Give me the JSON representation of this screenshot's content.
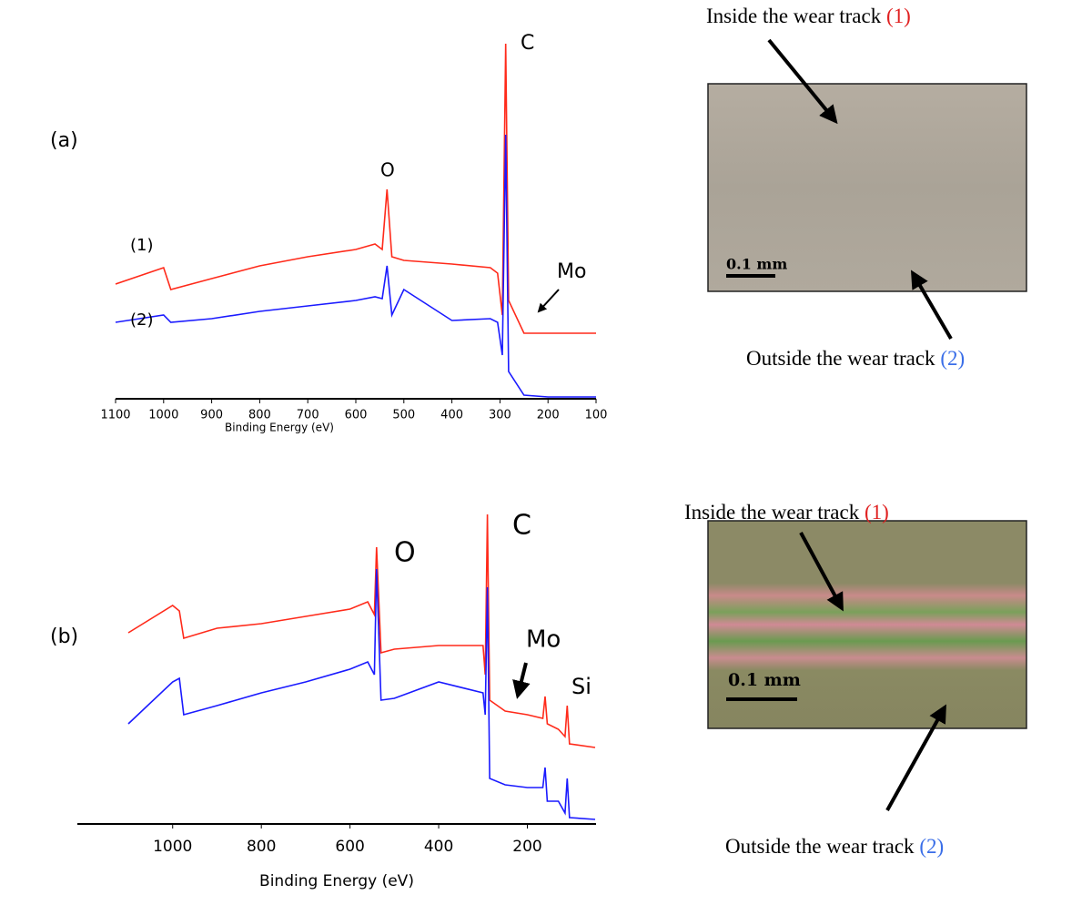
{
  "chart_data": [
    {
      "type": "line",
      "panel_label": "(a)",
      "xlabel": "Binding Energy (eV)",
      "x": [
        1100,
        1000,
        985,
        900,
        800,
        700,
        600,
        560,
        545,
        535,
        525,
        500,
        400,
        320,
        305,
        295,
        288,
        282,
        250,
        200,
        100
      ],
      "xlim": [
        1100,
        100
      ],
      "xticks": [
        1100,
        1000,
        900,
        800,
        700,
        600,
        500,
        400,
        300,
        200,
        100
      ],
      "ylim": [
        0,
        100
      ],
      "series": [
        {
          "name": "(1)",
          "color": "#ff2a1a",
          "values": [
            31.5,
            36,
            30,
            33,
            36.5,
            39,
            41,
            42.5,
            41,
            57.5,
            39,
            38,
            37,
            36,
            34.5,
            23,
            97.5,
            27,
            18,
            18,
            18
          ]
        },
        {
          "name": "(2)",
          "color": "#1a1aff",
          "values": [
            21,
            23,
            21,
            22,
            24,
            25.5,
            27,
            28,
            27.5,
            36.5,
            23,
            30,
            21.5,
            22,
            21,
            12,
            72.5,
            7.5,
            1,
            0.5,
            0.5
          ]
        }
      ],
      "peak_labels": [
        "C",
        "O",
        "Mo"
      ]
    },
    {
      "type": "line",
      "panel_label": "(b)",
      "xlabel": "Binding Energy (eV)",
      "x": [
        1100,
        1000,
        985,
        975,
        900,
        800,
        700,
        600,
        560,
        545,
        540,
        530,
        500,
        400,
        300,
        295,
        290,
        285,
        250,
        200,
        165,
        160,
        155,
        130,
        115,
        110,
        105,
        47
      ],
      "xlim": [
        1215,
        45
      ],
      "xticks": [
        1000,
        800,
        600,
        400,
        200
      ],
      "ylim": [
        0,
        100
      ],
      "series": [
        {
          "color": "#ff2a1a",
          "values": [
            52.5,
            60,
            58.5,
            51,
            53.75,
            55,
            57,
            59,
            61,
            57.5,
            76,
            47,
            48,
            49,
            49,
            41,
            85,
            34,
            31,
            30,
            29,
            35,
            27.5,
            26,
            24,
            32.5,
            22,
            21
          ]
        },
        {
          "color": "#1a1aff",
          "values": [
            27.5,
            39,
            40,
            30,
            32.5,
            36,
            39,
            42.5,
            44.5,
            41,
            70,
            34,
            34.5,
            39,
            36,
            30,
            65,
            12.5,
            10.75,
            10,
            10,
            15.5,
            6.25,
            6.25,
            3,
            12.5,
            1.75,
            1.25
          ]
        }
      ],
      "peak_labels": [
        "C",
        "O",
        "Mo",
        "Si"
      ]
    }
  ],
  "micrographs": [
    {
      "inside_label": "Inside the wear track",
      "inside_number": "(1)",
      "outside_label": "Outside the wear track",
      "outside_number": "(2)",
      "scale_bar": "0.1 mm"
    },
    {
      "inside_label": "Inside the wear track",
      "inside_number": "(1)",
      "outside_label": "Outside the wear track",
      "outside_number": "(2)",
      "scale_bar": "0.1 mm"
    }
  ]
}
